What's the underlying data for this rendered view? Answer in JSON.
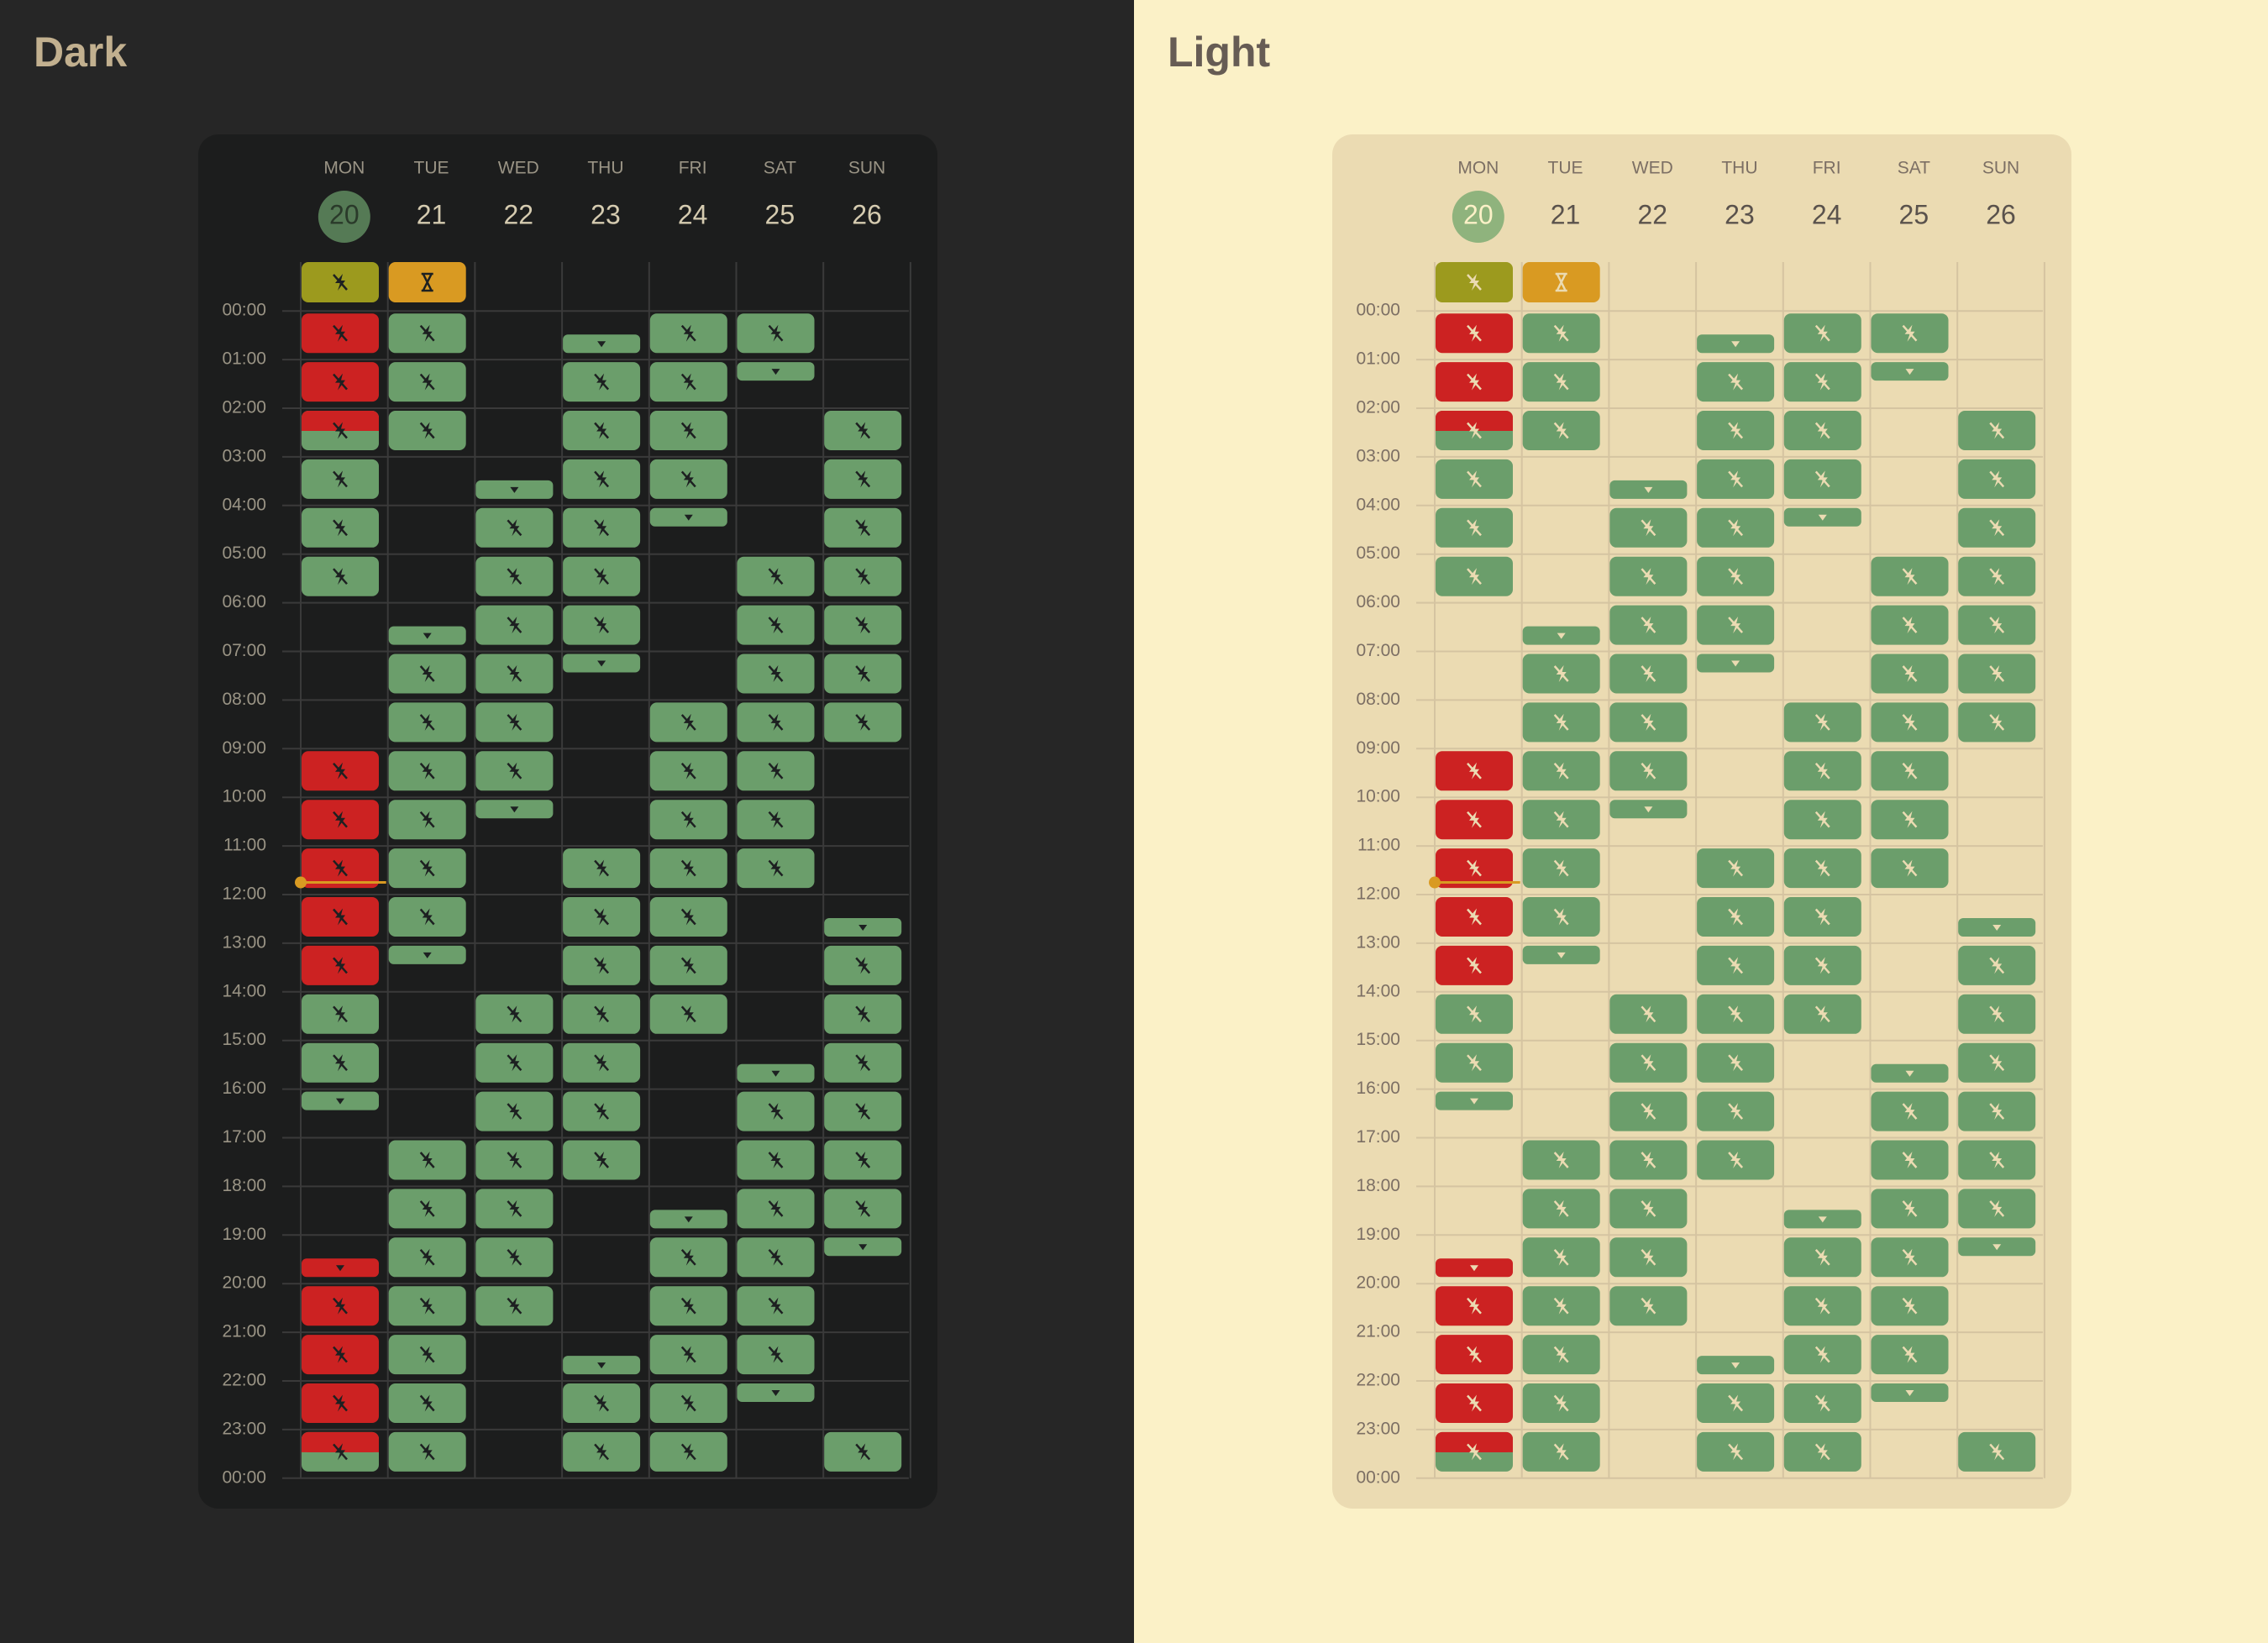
{
  "panels": [
    {
      "title": "Dark"
    },
    {
      "title": "Light"
    }
  ],
  "calendar": {
    "hours": [
      "00:00",
      "01:00",
      "02:00",
      "03:00",
      "04:00",
      "05:00",
      "06:00",
      "07:00",
      "08:00",
      "09:00",
      "10:00",
      "11:00",
      "12:00",
      "13:00",
      "14:00",
      "15:00",
      "16:00",
      "17:00",
      "18:00",
      "19:00",
      "20:00",
      "21:00",
      "22:00",
      "23:00",
      "00:00"
    ],
    "days": [
      {
        "name": "MON",
        "date": "20",
        "today": true,
        "allday": "olive",
        "cells": [
          "red",
          "red",
          "red-green",
          "green",
          "green",
          "green",
          null,
          null,
          null,
          "red",
          "red",
          "red",
          "red",
          "red",
          "green",
          "green",
          "green-top",
          null,
          null,
          "red-bottom",
          "red",
          "red",
          "red",
          "red-green"
        ]
      },
      {
        "name": "TUE",
        "date": "21",
        "allday": "orange",
        "cells": [
          "green",
          "green",
          "green",
          null,
          null,
          null,
          "green-bottom",
          "green",
          "green",
          "green",
          "green",
          "green",
          "green",
          "green-top",
          null,
          null,
          null,
          "green",
          "green",
          "green",
          "green",
          "green",
          "green",
          "green"
        ]
      },
      {
        "name": "WED",
        "date": "22",
        "cells": [
          null,
          null,
          null,
          "green-bottom",
          "green",
          "green",
          "green",
          "green",
          "green",
          "green",
          "green-top",
          null,
          null,
          null,
          "green",
          "green",
          "green",
          "green",
          "green",
          "green",
          "green",
          null,
          null,
          null
        ]
      },
      {
        "name": "THU",
        "date": "23",
        "cells": [
          "green-bottom",
          "green",
          "green",
          "green",
          "green",
          "green",
          "green",
          "green-top",
          null,
          null,
          null,
          "green",
          "green",
          "green",
          "green",
          "green",
          "green",
          "green",
          null,
          null,
          null,
          "green-bottom",
          "green",
          "green"
        ]
      },
      {
        "name": "FRI",
        "date": "24",
        "cells": [
          "green",
          "green",
          "green",
          "green",
          "green-top",
          null,
          null,
          null,
          "green",
          "green",
          "green",
          "green",
          "green",
          "green",
          "green",
          null,
          null,
          null,
          "green-bottom",
          "green",
          "green",
          "green",
          "green",
          "green"
        ]
      },
      {
        "name": "SAT",
        "date": "25",
        "cells": [
          "green",
          "green-top",
          null,
          null,
          null,
          "green",
          "green",
          "green",
          "green",
          "green",
          "green",
          "green",
          null,
          null,
          null,
          "green-bottom",
          "green",
          "green",
          "green",
          "green",
          "green",
          "green",
          "green-top",
          null
        ]
      },
      {
        "name": "SUN",
        "date": "26",
        "cells": [
          null,
          null,
          "green",
          "green",
          "green",
          "green",
          "green",
          "green",
          "green",
          null,
          null,
          null,
          "green-bottom",
          "green",
          "green",
          "green",
          "green",
          "green",
          "green",
          "green-top",
          null,
          null,
          null,
          "green"
        ]
      }
    ]
  }
}
